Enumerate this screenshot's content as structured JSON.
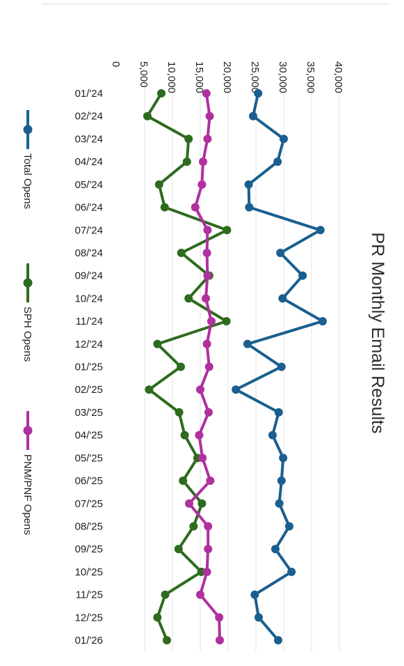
{
  "chart_data": {
    "type": "line",
    "title": "PR Monthly Email Results",
    "xlabel": "",
    "ylabel": "",
    "ylim": [
      0,
      40000
    ],
    "y_ticks": [
      "0",
      "5,000",
      "10,000",
      "15,000",
      "20,000",
      "25,000",
      "30,000",
      "35,000",
      "40,000"
    ],
    "grid": true,
    "legend": "left",
    "orientation": "rotated 90° clockwise",
    "categories": [
      "01/'24",
      "02/'24",
      "03/'24",
      "04/'24",
      "05/'24",
      "06/'24",
      "07/'24",
      "08/'24",
      "09/'24",
      "10/'24",
      "11/'24",
      "12/'24",
      "01/'25",
      "02/'25",
      "03/'25",
      "04/'25",
      "05/'25",
      "06/'25",
      "07/'25",
      "08/'25",
      "09/'25",
      "10/'25",
      "11/'25",
      "12/'25",
      "01/'26"
    ],
    "series": [
      {
        "name": "Total Opens",
        "color": "#1a5f8f",
        "values": [
          25400,
          24500,
          30000,
          28900,
          23700,
          23800,
          36600,
          29400,
          33400,
          29800,
          37000,
          23500,
          29600,
          21400,
          29100,
          28000,
          29900,
          29600,
          29200,
          31000,
          28500,
          31400,
          24800,
          25500,
          29000
        ]
      },
      {
        "name": "SPH Opens",
        "color": "#2e6b1e",
        "values": [
          8000,
          5500,
          12900,
          12600,
          7600,
          8600,
          19800,
          11600,
          16600,
          12900,
          19700,
          7300,
          11500,
          5800,
          11200,
          12200,
          14500,
          11900,
          15300,
          13800,
          11100,
          15200,
          8700,
          7300,
          9000
        ]
      },
      {
        "name": "PNM/PNF Opens",
        "color": "#b0309e",
        "values": [
          16100,
          16700,
          16300,
          15500,
          15300,
          14100,
          16300,
          16200,
          16300,
          16000,
          17000,
          16200,
          16600,
          15000,
          16500,
          14800,
          15400,
          16800,
          13000,
          16400,
          16400,
          16200,
          15000,
          18400,
          18500
        ]
      }
    ]
  }
}
